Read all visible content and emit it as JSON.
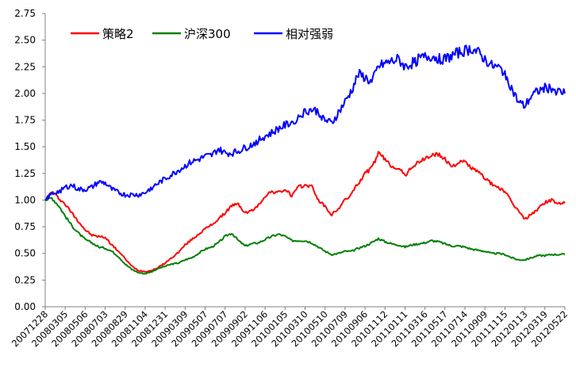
{
  "chart_data": {
    "type": "line",
    "title": "",
    "xlabel": "",
    "ylabel": "",
    "ylim": [
      0,
      2.75
    ],
    "yticks": [
      "0.00",
      "0.25",
      "0.50",
      "0.75",
      "1.00",
      "1.25",
      "1.50",
      "1.75",
      "2.00",
      "2.25",
      "2.50",
      "2.75"
    ],
    "xticks": [
      "20071228",
      "20080305",
      "20080506",
      "20080703",
      "20080829",
      "20081104",
      "20081231",
      "20090309",
      "20090507",
      "20090707",
      "20090902",
      "20091106",
      "20100105",
      "20100310",
      "20100510",
      "20100709",
      "20100906",
      "20101112",
      "20110111",
      "20110316",
      "20110517",
      "20110714",
      "20110909",
      "20111115",
      "20120113",
      "20120319",
      "20120522"
    ],
    "legend_position": "top-left",
    "grid": false,
    "series": [
      {
        "name": "策略2",
        "color": "#ff0000",
        "values": [
          1.0,
          1.08,
          1.02,
          0.96,
          0.88,
          0.8,
          0.72,
          0.67,
          0.66,
          0.65,
          0.58,
          0.52,
          0.45,
          0.38,
          0.34,
          0.33,
          0.34,
          0.37,
          0.41,
          0.46,
          0.51,
          0.58,
          0.63,
          0.68,
          0.73,
          0.77,
          0.82,
          0.88,
          0.95,
          0.96,
          0.88,
          0.9,
          0.95,
          1.04,
          1.08,
          1.07,
          1.1,
          1.04,
          1.12,
          1.14,
          1.13,
          1.0,
          0.94,
          0.86,
          0.92,
          1.0,
          1.06,
          1.16,
          1.25,
          1.3,
          1.44,
          1.38,
          1.32,
          1.3,
          1.23,
          1.31,
          1.35,
          1.39,
          1.42,
          1.43,
          1.38,
          1.32,
          1.35,
          1.36,
          1.3,
          1.26,
          1.21,
          1.15,
          1.12,
          1.08,
          0.98,
          0.9,
          0.82,
          0.87,
          0.92,
          0.98,
          1.0,
          0.97,
          0.97
        ]
      },
      {
        "name": "沪深300",
        "color": "#008000",
        "values": [
          1.0,
          1.02,
          0.95,
          0.85,
          0.76,
          0.69,
          0.63,
          0.6,
          0.56,
          0.55,
          0.52,
          0.47,
          0.4,
          0.35,
          0.32,
          0.31,
          0.33,
          0.36,
          0.38,
          0.4,
          0.41,
          0.44,
          0.46,
          0.5,
          0.54,
          0.56,
          0.6,
          0.66,
          0.69,
          0.62,
          0.57,
          0.59,
          0.6,
          0.63,
          0.66,
          0.68,
          0.66,
          0.62,
          0.62,
          0.62,
          0.6,
          0.56,
          0.52,
          0.49,
          0.5,
          0.52,
          0.52,
          0.55,
          0.57,
          0.6,
          0.64,
          0.61,
          0.59,
          0.58,
          0.56,
          0.58,
          0.59,
          0.6,
          0.62,
          0.61,
          0.59,
          0.57,
          0.57,
          0.56,
          0.54,
          0.53,
          0.52,
          0.5,
          0.5,
          0.49,
          0.46,
          0.44,
          0.44,
          0.46,
          0.48,
          0.48,
          0.49,
          0.49,
          0.49
        ]
      },
      {
        "name": "相对强弱",
        "color": "#0000ff",
        "values": [
          1.0,
          1.06,
          1.08,
          1.12,
          1.14,
          1.1,
          1.1,
          1.12,
          1.17,
          1.16,
          1.1,
          1.07,
          1.05,
          1.05,
          1.05,
          1.07,
          1.12,
          1.16,
          1.2,
          1.24,
          1.28,
          1.32,
          1.36,
          1.38,
          1.41,
          1.42,
          1.48,
          1.44,
          1.44,
          1.46,
          1.49,
          1.52,
          1.56,
          1.6,
          1.63,
          1.67,
          1.7,
          1.73,
          1.78,
          1.83,
          1.85,
          1.83,
          1.75,
          1.72,
          1.82,
          1.92,
          2.03,
          2.18,
          2.15,
          2.1,
          2.25,
          2.28,
          2.3,
          2.32,
          2.25,
          2.28,
          2.32,
          2.34,
          2.35,
          2.33,
          2.32,
          2.35,
          2.38,
          2.4,
          2.42,
          2.38,
          2.32,
          2.26,
          2.24,
          2.2,
          2.05,
          1.92,
          1.88,
          1.98,
          2.02,
          2.05,
          2.05,
          2.02,
          2.0
        ]
      }
    ]
  }
}
